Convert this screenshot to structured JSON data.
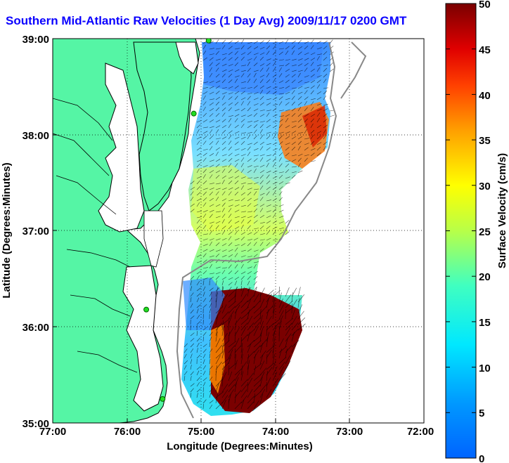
{
  "title": "Southern Mid-Atlantic Raw Velocities (1 Day Avg) 2009/11/17 0200 GMT",
  "map": {
    "xlabel": "Longitude (Degrees:Minutes)",
    "ylabel": "Latitude (Degrees:Minutes)",
    "x_ticks": [
      "77:00",
      "76:00",
      "75:00",
      "74:00",
      "73:00",
      "72:00"
    ],
    "y_ticks": [
      "39:00",
      "38:00",
      "37:00",
      "36:00",
      "35:00"
    ],
    "lon_range": [
      -77,
      -72
    ],
    "lat_range": [
      35,
      39
    ],
    "grid": "dotted",
    "land_color": "#55f5a5",
    "coastline_color": "#000000",
    "stations": [
      {
        "lon": -74.9,
        "lat": 38.98
      },
      {
        "lon": -75.1,
        "lat": 38.22
      },
      {
        "lon": -75.74,
        "lat": 36.18
      },
      {
        "lon": -75.52,
        "lat": 35.25
      }
    ]
  },
  "colorbar": {
    "label": "Surface Velocity (cm/s)",
    "ticks": [
      "50",
      "45",
      "40",
      "35",
      "30",
      "25",
      "20",
      "15",
      "10",
      "5",
      "0"
    ],
    "min": 0,
    "max": 50,
    "colormap": "jet"
  }
}
